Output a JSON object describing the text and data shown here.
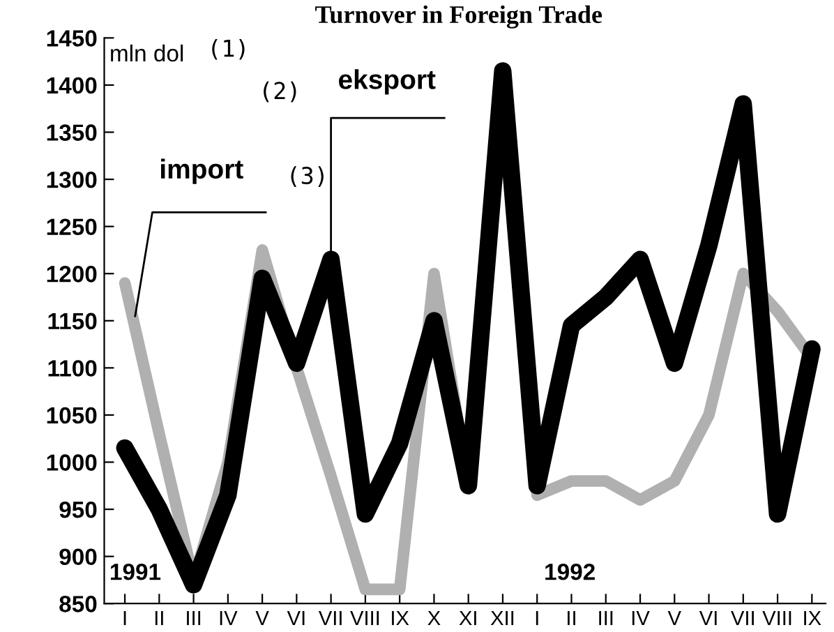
{
  "chart_data": {
    "type": "line",
    "title": "Turnover in Foreign Trade",
    "categories": [
      "I",
      "II",
      "III",
      "IV",
      "V",
      "VI",
      "VII",
      "VIII",
      "IX",
      "X",
      "XI",
      "XII",
      "I",
      "II",
      "III",
      "IV",
      "V",
      "VI",
      "VII",
      "VIII",
      "IX"
    ],
    "series": [
      {
        "name": "import",
        "color": "#b0b0b0",
        "values": [
          1190,
          1030,
          875,
          1000,
          1225,
          1100,
          985,
          865,
          865,
          1200,
          975,
          1415,
          965,
          980,
          980,
          960,
          980,
          1050,
          1200,
          1160,
          1110
        ]
      },
      {
        "name": "eksport",
        "color": "#000000",
        "values": [
          1015,
          950,
          870,
          965,
          1195,
          1105,
          1215,
          945,
          1020,
          1150,
          975,
          1415,
          975,
          1145,
          1175,
          1215,
          1105,
          1230,
          1380,
          945,
          1120
        ]
      }
    ],
    "ylim": [
      850,
      1450
    ],
    "yticks": [
      850,
      900,
      950,
      1000,
      1050,
      1100,
      1150,
      1200,
      1250,
      1300,
      1350,
      1400,
      1450
    ],
    "annotations": [
      "mln dol",
      "(1)",
      "(2)",
      "(3)",
      "1991",
      "1992"
    ],
    "grid": false,
    "legend": false,
    "marker": "none",
    "line_style": "solid"
  }
}
